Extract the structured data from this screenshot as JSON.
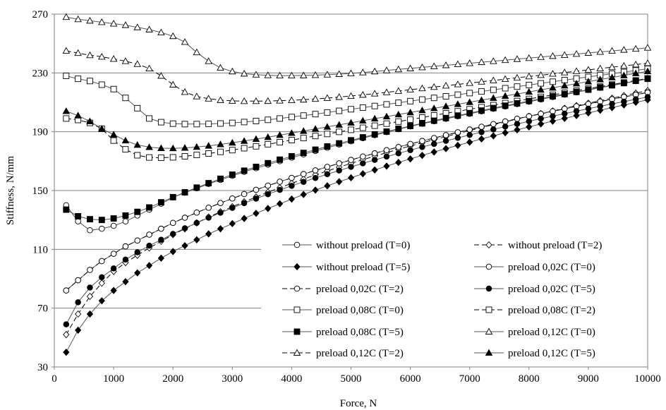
{
  "chart_data": {
    "type": "line",
    "title": "",
    "xlabel": "Force, N",
    "ylabel": "Stiffness, N/mm",
    "xlim": [
      0,
      10000
    ],
    "ylim": [
      30,
      270
    ],
    "x_ticks": [
      0,
      1000,
      2000,
      3000,
      4000,
      5000,
      6000,
      7000,
      8000,
      9000,
      10000
    ],
    "y_ticks": [
      30,
      70,
      110,
      150,
      190,
      230,
      270
    ],
    "grid": "horizontal",
    "legend_position": "lower-right, two columns",
    "x": [
      200,
      400,
      600,
      800,
      1000,
      1200,
      1400,
      1600,
      1800,
      2000,
      2200,
      2400,
      2600,
      2800,
      3000,
      3200,
      3400,
      3600,
      3800,
      4000,
      4200,
      4400,
      4600,
      4800,
      5000,
      5200,
      5400,
      5600,
      5800,
      6000,
      6200,
      6400,
      6600,
      6800,
      7000,
      7200,
      7400,
      7600,
      7800,
      8000,
      8200,
      8400,
      8600,
      8800,
      9000,
      9200,
      9400,
      9600,
      9800,
      10000
    ],
    "series": [
      {
        "name": "without preload (T=0)",
        "marker": "circle-open",
        "line": "solid",
        "values": [
          140,
          129,
          123,
          124,
          126,
          129,
          133,
          137,
          141,
          145.3,
          148.5,
          151.5,
          154.5,
          157.2,
          160,
          162.7,
          165.2,
          167.6,
          170,
          172.3,
          174.6,
          176.9,
          179.1,
          181.3,
          183.5,
          185.6,
          187.7,
          189.7,
          191.7,
          193.6,
          195.4,
          197.1,
          198.8,
          200.5,
          202.2,
          203.9,
          205.6,
          207.2,
          208.8,
          210.4,
          212,
          213.6,
          215.2,
          216.8,
          218.4,
          219.9,
          221.4,
          222.9,
          224.4,
          225.9
        ]
      },
      {
        "name": "without preload (T=2)",
        "marker": "diamond-open",
        "line": "dashed",
        "values": [
          52,
          66,
          78,
          87,
          95,
          101,
          106,
          111,
          115.5,
          120,
          124,
          128,
          132,
          135.5,
          139,
          142.3,
          145.6,
          148.8,
          151.9,
          154.9,
          157.8,
          160.6,
          163.3,
          165.9,
          168.5,
          171,
          173.4,
          175.8,
          178.1,
          180.3,
          182.5,
          184.6,
          186.7,
          188.8,
          190.8,
          192.8,
          194.8,
          196.7,
          198.6,
          200.5,
          202.3,
          204.1,
          205.9,
          207.7,
          209.4,
          211.1,
          212.8,
          214.5,
          216.2,
          217.9
        ]
      },
      {
        "name": "without preload (T=5)",
        "marker": "diamond-filled",
        "line": "solid",
        "values": [
          40,
          55,
          66,
          75,
          82,
          88,
          94,
          99,
          104,
          108.5,
          112.5,
          116.5,
          120.5,
          124,
          127.5,
          131,
          134.5,
          137.8,
          141,
          144.2,
          147.3,
          150.3,
          153.2,
          156,
          158.7,
          161.4,
          164,
          166.6,
          169.1,
          171.5,
          173.9,
          176.2,
          178.5,
          180.7,
          182.9,
          185.1,
          187.2,
          189.3,
          191.3,
          193.3,
          195.3,
          197.2,
          199.1,
          201,
          202.8,
          204.6,
          206.4,
          208.2,
          210,
          211.7
        ]
      },
      {
        "name": "preload 0,02C (T=0)",
        "marker": "circle-open",
        "line": "solid",
        "values": [
          82,
          89,
          96,
          102,
          107,
          112,
          116,
          120,
          124,
          128,
          131.5,
          135,
          138.3,
          141.5,
          144.6,
          147.6,
          150.5,
          153.3,
          156,
          158.6,
          161.2,
          163.7,
          166.1,
          168.5,
          170.8,
          173.1,
          175.3,
          177.5,
          179.6,
          181.7,
          183.7,
          185.7,
          187.7,
          189.6,
          191.5,
          193.4,
          195.2,
          197,
          198.8,
          200.5,
          202.2,
          203.9,
          205.6,
          207.3,
          208.9,
          210.5,
          212.1,
          213.7,
          215.2,
          216.7
        ]
      },
      {
        "name": "preload 0,02C (T=2)",
        "marker": "circle-open",
        "line": "dashed",
        "values": [
          82,
          89,
          96,
          102,
          107,
          112,
          116,
          120,
          124,
          128,
          131.5,
          135,
          138.3,
          141.5,
          144.6,
          147.6,
          150.5,
          153.3,
          156,
          158.6,
          161.2,
          163.7,
          166.1,
          168.5,
          170.8,
          173.1,
          175.3,
          177.5,
          179.6,
          181.7,
          183.7,
          185.7,
          187.7,
          189.6,
          191.5,
          193.4,
          195.2,
          197,
          198.8,
          200.5,
          202.2,
          203.9,
          205.6,
          207.3,
          208.9,
          210.5,
          212.1,
          213.7,
          215.2,
          216.7
        ]
      },
      {
        "name": "preload 0,02C (T=5)",
        "marker": "circle-filled",
        "line": "solid",
        "values": [
          59,
          74,
          84,
          91,
          97,
          103,
          108,
          112.5,
          116.5,
          120.5,
          124.3,
          128,
          131.5,
          134.9,
          138.2,
          141.4,
          144.5,
          147.5,
          150.4,
          153.2,
          155.9,
          158.5,
          161.1,
          163.6,
          166.1,
          168.5,
          170.8,
          173.1,
          175.3,
          177.5,
          179.6,
          181.7,
          183.8,
          185.8,
          187.8,
          189.7,
          191.6,
          193.5,
          195.3,
          197.1,
          198.9,
          200.6,
          202.3,
          204,
          205.7,
          207.3,
          208.9,
          210.5,
          212.1,
          213.6
        ]
      },
      {
        "name": "preload 0,08C (T=0)",
        "marker": "square-open",
        "line": "solid",
        "values": [
          228,
          226,
          224.5,
          222,
          219,
          213,
          206,
          199,
          196.5,
          195.5,
          195.2,
          195.2,
          195.3,
          195.6,
          196,
          196.6,
          197.3,
          198.1,
          199,
          200,
          201,
          202,
          203.1,
          204.2,
          205.3,
          206.4,
          207.5,
          208.6,
          209.7,
          210.8,
          211.9,
          213,
          214.1,
          215.2,
          216.3,
          217.4,
          218.5,
          219.6,
          220.7,
          221.8,
          222.9,
          224,
          225.1,
          226.2,
          227.3,
          228.4,
          229.5,
          230.6,
          231.7,
          232.8
        ]
      },
      {
        "name": "preload 0,08C (T=2)",
        "marker": "square-open",
        "line": "dashed",
        "values": [
          199,
          198,
          196,
          192,
          184,
          178,
          174,
          172.5,
          172.3,
          172.6,
          173.3,
          174.2,
          175.2,
          176.3,
          177.5,
          178.8,
          180.1,
          181.5,
          182.9,
          184.3,
          185.7,
          187.1,
          188.5,
          189.9,
          191.3,
          192.7,
          194.1,
          195.5,
          196.9,
          198.3,
          199.7,
          201.1,
          202.5,
          203.9,
          205.3,
          206.7,
          208.1,
          209.5,
          210.9,
          212.3,
          213.7,
          215.1,
          216.5,
          217.9,
          219.3,
          220.7,
          222.1,
          223.5,
          224.9,
          226.3
        ]
      },
      {
        "name": "preload 0,08C (T=5)",
        "marker": "square-filled",
        "line": "solid",
        "values": [
          137,
          132.5,
          130.5,
          130,
          131,
          133,
          135.5,
          138.5,
          142,
          145.5,
          148.8,
          152,
          155,
          158,
          160.8,
          163.5,
          166.1,
          168.6,
          171,
          173.3,
          175.6,
          177.8,
          180,
          182.1,
          184.2,
          186.2,
          188.2,
          190.1,
          192,
          193.9,
          195.7,
          197.5,
          199.3,
          201,
          202.7,
          204.4,
          206.1,
          207.7,
          209.3,
          210.9,
          212.5,
          214.1,
          215.6,
          217.1,
          218.6,
          220.1,
          221.6,
          223.1,
          224.6,
          226
        ]
      },
      {
        "name": "preload 0,12C (T=0)",
        "marker": "triangle-open",
        "line": "solid",
        "values": [
          268,
          266.5,
          265.5,
          264.5,
          263.5,
          262.5,
          261,
          259.5,
          257.5,
          255,
          251,
          244,
          238,
          233.5,
          231,
          229.5,
          228.8,
          228.4,
          228.2,
          228.2,
          228.3,
          228.5,
          228.8,
          229.2,
          229.7,
          230.3,
          231,
          231.7,
          232.4,
          233.1,
          233.8,
          234.5,
          235.2,
          235.9,
          236.6,
          237.3,
          238,
          238.7,
          239.4,
          240.1,
          240.8,
          241.5,
          242.2,
          242.9,
          243.6,
          244.3,
          245,
          245.7,
          246.4,
          247.1
        ]
      },
      {
        "name": "preload 0,12C (T=2)",
        "marker": "triangle-open",
        "line": "dashed",
        "values": [
          245,
          243.5,
          242,
          241,
          239.5,
          238,
          236,
          233,
          228,
          222,
          217,
          214,
          212.5,
          211.5,
          211,
          210.8,
          210.8,
          210.9,
          211.1,
          211.4,
          211.8,
          212.3,
          212.9,
          213.6,
          214.3,
          215.1,
          215.9,
          216.8,
          217.7,
          218.6,
          219.5,
          220.4,
          221.3,
          222.2,
          223.1,
          224,
          224.9,
          225.8,
          226.7,
          227.6,
          228.5,
          229.4,
          230.3,
          231.2,
          232.1,
          233,
          233.9,
          234.8,
          235.7,
          236.6
        ]
      },
      {
        "name": "preload 0,12C (T=5)",
        "marker": "triangle-filled",
        "line": "solid",
        "values": [
          204,
          201,
          197,
          192,
          188,
          184,
          181,
          179.5,
          178.8,
          178.7,
          179,
          179.6,
          180.4,
          181.4,
          182.5,
          183.7,
          185,
          186.3,
          187.7,
          189.1,
          190.5,
          191.9,
          193.3,
          194.7,
          196.1,
          197.5,
          198.9,
          200.3,
          201.7,
          203.1,
          204.5,
          205.9,
          207.3,
          208.7,
          210.1,
          211.5,
          212.9,
          214.3,
          215.7,
          217.1,
          218.5,
          219.9,
          221.3,
          222.7,
          224.1,
          225.5,
          226.9,
          228.3,
          229.7,
          231.1
        ]
      }
    ],
    "legend": [
      "without preload (T=0)",
      "without preload (T=2)",
      "without preload (T=5)",
      "preload  0,02C (T=0)",
      "preload  0,02C (T=2)",
      "preload  0,02C (T=5)",
      "preload  0,08C (T=0)",
      "preload  0,08C (T=2)",
      "preload  0,08C (T=5)",
      "preload  0,12C (T=0)",
      "preload  0,12C (T=2)",
      "preload  0,12C (T=5)"
    ]
  }
}
